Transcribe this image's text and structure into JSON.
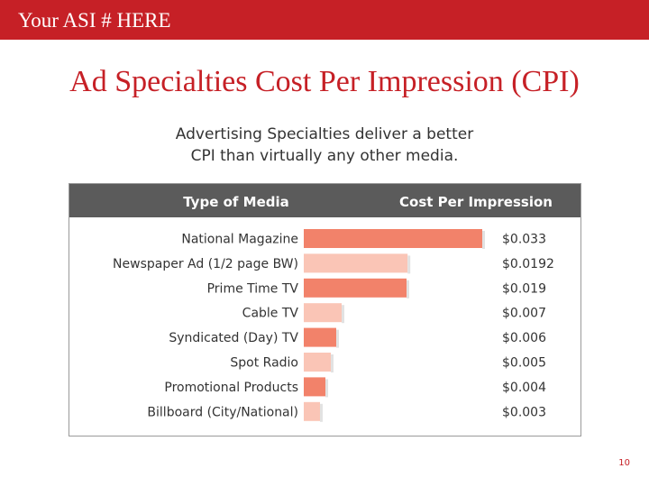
{
  "slide": {
    "header_text": "Your ASI # HERE",
    "title": "Ad Specialties Cost Per Impression (CPI)",
    "subtitle_lines": [
      "Advertising Specialties deliver a better",
      "CPI than virtually any other media."
    ],
    "slide_number": "10"
  },
  "colors": {
    "header_red": "#c62026",
    "bar_dark": "#f2826a",
    "bar_light": "#fac5b6",
    "table_header": "#5b5b5b"
  },
  "chart_data": {
    "type": "bar",
    "orientation": "horizontal",
    "column_headers": [
      "Type of Media",
      "Cost Per Impression"
    ],
    "categories": [
      "National Magazine",
      "Newspaper Ad (1/2 page BW)",
      "Prime Time TV",
      "Cable TV",
      "Syndicated (Day) TV",
      "Spot Radio",
      "Promotional Products",
      "Billboard (City/National)"
    ],
    "values": [
      0.033,
      0.0192,
      0.019,
      0.007,
      0.006,
      0.005,
      0.004,
      0.003
    ],
    "value_labels": [
      "$0.033",
      "$0.0192",
      "$0.019",
      "$0.007",
      "$0.006",
      "$0.005",
      "$0.004",
      "$0.003"
    ],
    "bar_styles": [
      "dark",
      "light",
      "dark",
      "light",
      "dark",
      "light",
      "dark",
      "light"
    ],
    "grid": false
  }
}
